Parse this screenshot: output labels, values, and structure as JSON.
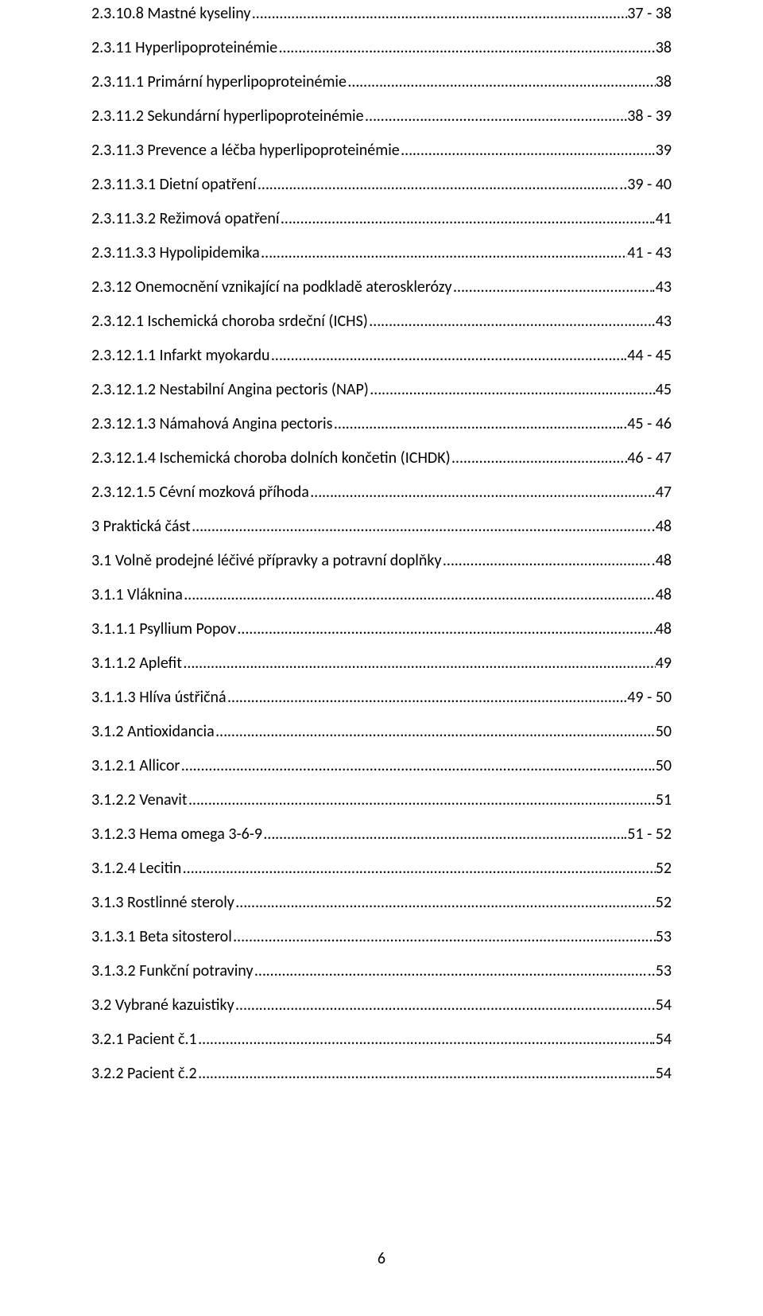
{
  "dots": "………………………………………………………………………………………………………………………………………………………………………………………………………………………………………………",
  "page_number": "6",
  "entries": [
    {
      "label": "2.3.10.8 Mastné kyseliny",
      "page": "37 - 38"
    },
    {
      "label": "2.3.11 Hyperlipoproteinémie",
      "page": ".38"
    },
    {
      "label": "2.3.11.1 Primární hyperlipoproteinémie",
      "page": "38"
    },
    {
      "label": "2.3.11.2 Sekundární hyperlipoproteinémie",
      "page": "38 - 39"
    },
    {
      "label": "2.3.11.3 Prevence a léčba hyperlipoproteinémie",
      "page": ".39"
    },
    {
      "label": "2.3.11.3.1 Dietní opatření",
      "page": "..39 - 40"
    },
    {
      "label": "2.3.11.3.2 Režimová opatření",
      "page": ".41"
    },
    {
      "label": "2.3.11.3.3 Hypolipidemika",
      "page": "41 - 43"
    },
    {
      "label": "2.3.12 Onemocnění vznikající na podkladě aterosklerózy",
      "page": ".43"
    },
    {
      "label": "2.3.12.1 Ischemická choroba srdeční (ICHS)",
      "page": ".43"
    },
    {
      "label": "2.3.12.1.1 Infarkt myokardu",
      "page": ".44 - 45"
    },
    {
      "label": "2.3.12.1.2 Nestabilní Angina pectoris (NAP)",
      "page": "45"
    },
    {
      "label": "2.3.12.1.3 Námahová Angina pectoris",
      "page": "..45 - 46"
    },
    {
      "label": "2.3.12.1.4 Ischemická choroba dolních končetin (ICHDK)",
      "page": "46 - 47"
    },
    {
      "label": "2.3.12.1.5 Cévní mozková příhoda",
      "page": ".47"
    },
    {
      "label": "3 Praktická část",
      "page": ".48"
    },
    {
      "label": "3.1 Volně prodejné léčivé přípravky a potravní doplňky",
      "page": ".48"
    },
    {
      "label": "3.1.1 Vláknina",
      "page": "48"
    },
    {
      "label": "3.1.1.1 Psyllium Popov",
      "page": "48"
    },
    {
      "label": "3.1.1.2 Aplefit",
      "page": "49"
    },
    {
      "label": "3.1.1.3 Hlíva ústřičná",
      "page": ".49 - 50"
    },
    {
      "label": "3.1.2 Antioxidancia",
      "page": "50"
    },
    {
      "label": "3.1.2.1 Allicor",
      "page": ".50"
    },
    {
      "label": "3.1.2.2 Venavit",
      "page": "..51"
    },
    {
      "label": "3.1.2.3 Hema omega 3-6-9",
      "page": ".51 - 52"
    },
    {
      "label": "3.1.2.4 Lecitin",
      "page": "52"
    },
    {
      "label": "3.1.3 Rostlinné steroly",
      "page": ".52"
    },
    {
      "label": "3.1.3.1 Beta sitosterol",
      "page": " 53"
    },
    {
      "label": "3.1.3.2 Funkční potraviny",
      "page": "..53"
    },
    {
      "label": "3.2 Vybrané kazuistiky",
      "page": ".54"
    },
    {
      "label": "3.2.1 Pacient č.1",
      "page": ".54"
    },
    {
      "label": "3.2.2 Pacient č.2",
      "page": ".54"
    }
  ]
}
